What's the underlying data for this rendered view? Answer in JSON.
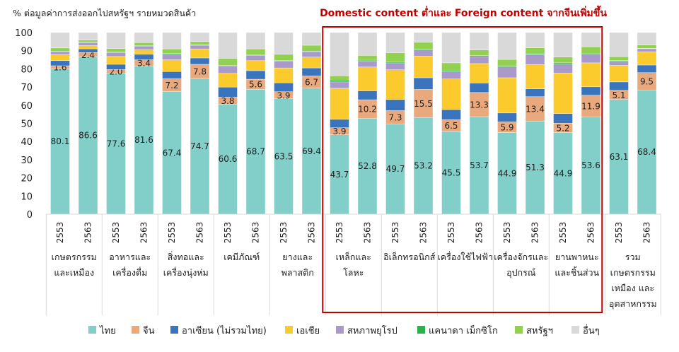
{
  "chart_data": {
    "type": "bar",
    "stacked": true,
    "title": "% ต่อมูลค่าการส่งออกไปสหรัฐฯ รายหมวดสินค้า",
    "annotation": "Domestic content ต่ำและ Foreign content จากจีนเพิ่มขึ้น",
    "ylim": [
      0,
      100
    ],
    "yticks": [
      0,
      10,
      20,
      30,
      40,
      50,
      60,
      70,
      80,
      90,
      100
    ],
    "grid": false,
    "legend_position": "bottom",
    "years": [
      "2553",
      "2563"
    ],
    "groups": [
      {
        "label": [
          "เกษตรกรรม",
          "และเหมือง"
        ]
      },
      {
        "label": [
          "อาหารและ",
          "เครื่องดื่ม"
        ]
      },
      {
        "label": [
          "สิ่งทอและ",
          "เครื่องนุ่งห่ม"
        ]
      },
      {
        "label": [
          "เคมีภัณฑ์"
        ]
      },
      {
        "label": [
          "ยางและ",
          "พลาสติก"
        ]
      },
      {
        "label": [
          "เหล็กและ",
          "โลหะ"
        ]
      },
      {
        "label": [
          "อิเล็กทรอนิกส์"
        ]
      },
      {
        "label": [
          "เครื่องใช้ไฟฟ้า"
        ]
      },
      {
        "label": [
          "เครื่องจักรและ",
          "อุปกรณ์"
        ]
      },
      {
        "label": [
          "ยานพาหนะ",
          "และชิ้นส่วน"
        ]
      },
      {
        "label": [
          "รวม",
          "เกษตรกรรม",
          "เหมือง และ",
          "อุตสาหกรรม"
        ]
      }
    ],
    "highlighted_groups": [
      5,
      6,
      7,
      8,
      9
    ],
    "series": [
      {
        "name": "ไทย",
        "color": "#82cfca",
        "labeled": true,
        "values": [
          80.1,
          86.6,
          77.6,
          81.6,
          67.4,
          74.7,
          60.6,
          68.7,
          63.5,
          69.4,
          43.7,
          52.8,
          49.7,
          53.2,
          45.5,
          53.7,
          44.9,
          51.3,
          44.9,
          53.6,
          63.1,
          68.4
        ]
      },
      {
        "name": "จีน",
        "color": "#e9a97c",
        "labeled": true,
        "values": [
          1.6,
          2.4,
          2.0,
          3.4,
          7.2,
          7.8,
          3.8,
          5.6,
          3.9,
          6.7,
          3.9,
          10.2,
          7.3,
          15.5,
          6.5,
          13.3,
          5.9,
          13.4,
          5.2,
          11.9,
          5.1,
          9.5
        ]
      },
      {
        "name": "อาเซียน (ไม่รวมไทย)",
        "color": "#3a74bd",
        "values": [
          2.8,
          2.0,
          2.9,
          3.0,
          3.9,
          3.5,
          5.6,
          4.7,
          4.9,
          4.4,
          4.6,
          4.9,
          6.1,
          6.4,
          5.6,
          5.2,
          4.9,
          4.3,
          5.3,
          4.6,
          4.6,
          4.2
        ]
      },
      {
        "name": "เอเชีย",
        "color": "#fbcb2e",
        "values": [
          3.3,
          1.8,
          4.3,
          2.5,
          6.5,
          5.0,
          7.5,
          5.5,
          8.2,
          6.0,
          17.1,
          13.1,
          16.4,
          11.9,
          16.8,
          10.7,
          19.4,
          13.3,
          22.3,
          13.2,
          9.1,
          7.3
        ]
      },
      {
        "name": "สหภาพยุโรป",
        "color": "#a99acb",
        "values": [
          1.7,
          1.7,
          2.2,
          2.0,
          3.0,
          2.0,
          4.0,
          3.0,
          3.8,
          3.0,
          3.5,
          3.2,
          3.8,
          3.4,
          4.2,
          3.8,
          6.0,
          5.5,
          4.9,
          4.8,
          2.3,
          1.7
        ]
      },
      {
        "name": "แคนาดา เม็กซิโก",
        "color": "#28b24b",
        "values": [
          0.3,
          0.2,
          0.3,
          0.3,
          0.5,
          0.2,
          0.3,
          0.3,
          0.3,
          0.3,
          1.0,
          0.6,
          0.6,
          0.5,
          0.7,
          0.6,
          0.6,
          0.5,
          0.7,
          0.5,
          0.4,
          0.2
        ]
      },
      {
        "name": "สหรัฐฯ",
        "color": "#92d050",
        "values": [
          1.7,
          1.1,
          1.9,
          1.7,
          2.5,
          1.8,
          4.0,
          3.2,
          3.4,
          3.2,
          2.4,
          2.6,
          5.0,
          3.7,
          4.0,
          3.1,
          3.5,
          3.3,
          3.2,
          3.6,
          2.1,
          1.8
        ]
      },
      {
        "name": "อื่นๆ",
        "color": "#d9d9d9",
        "values": [
          8.5,
          4.2,
          8.8,
          5.5,
          9.0,
          5.0,
          14.2,
          9.0,
          12.0,
          7.0,
          23.8,
          12.6,
          11.1,
          5.4,
          16.7,
          9.6,
          14.8,
          8.4,
          13.5,
          7.8,
          13.3,
          6.9
        ]
      }
    ],
    "highlight_color": "#c00000"
  }
}
